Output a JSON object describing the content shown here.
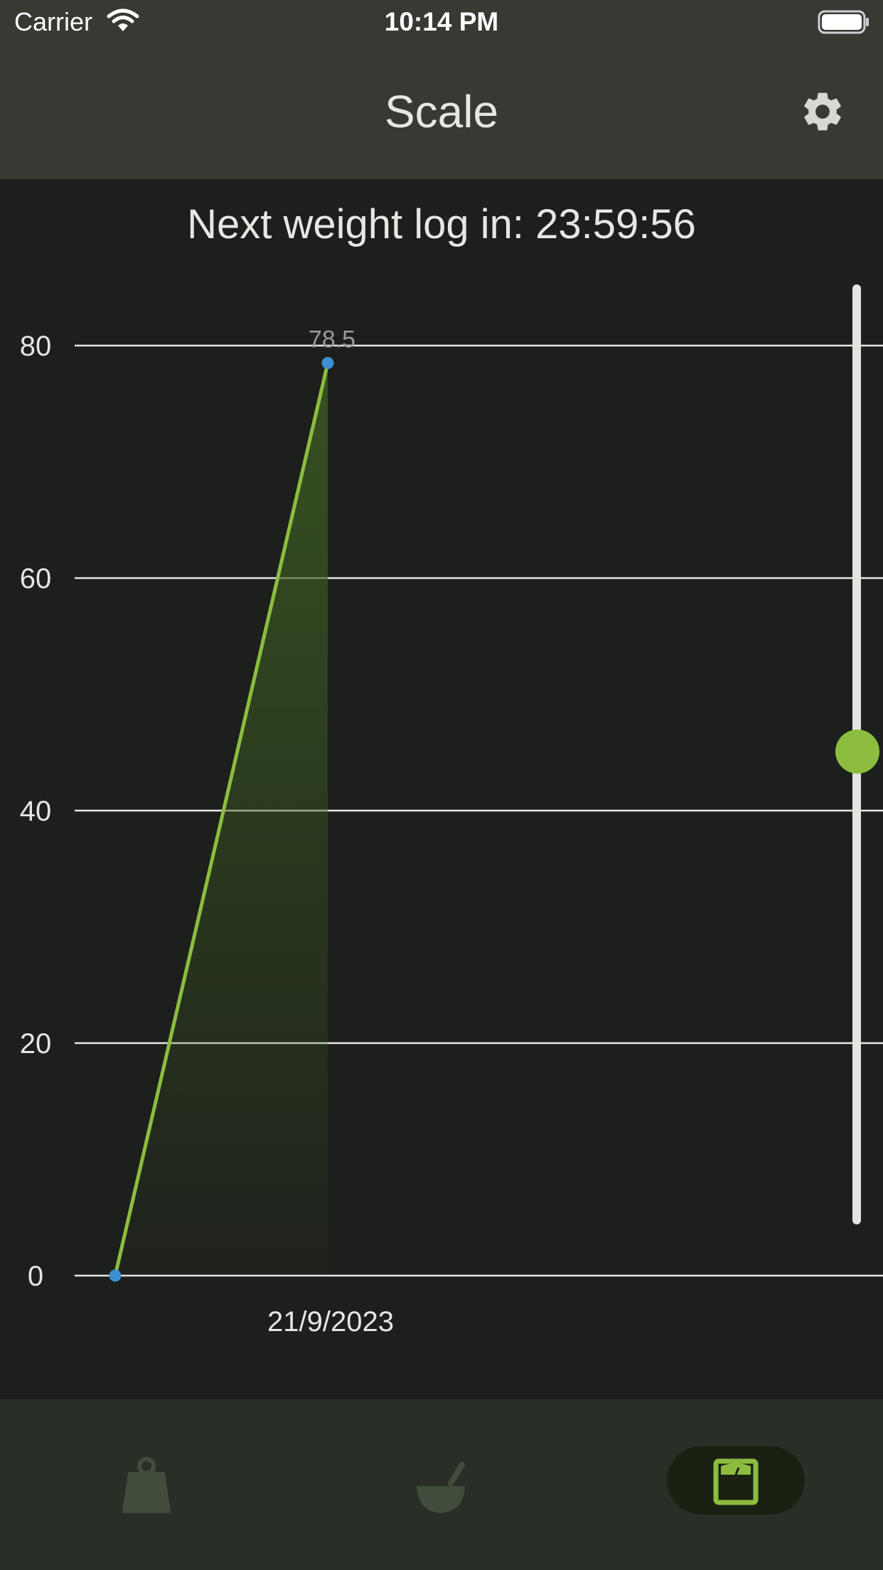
{
  "status_bar": {
    "carrier": "Carrier",
    "time": "10:14 PM"
  },
  "header": {
    "title": "Scale"
  },
  "countdown": {
    "text": "Next weight log in: 23:59:56"
  },
  "chart_data": {
    "type": "area",
    "points": [
      {
        "x": "",
        "y": 0
      },
      {
        "x": "21/9/2023",
        "y": 78.5,
        "label": "78.5"
      }
    ],
    "x_tick_labels": [
      "21/9/2023"
    ],
    "y_ticks": [
      0,
      20,
      40,
      60,
      80
    ],
    "ylim": [
      0,
      80
    ],
    "grid": true,
    "line_color": "#8cbd3f",
    "point_color": "#3d8fd1",
    "fill_color": "#3c5a22"
  },
  "zoom_slider": {
    "value_fraction": 0.5
  },
  "tab_bar": {
    "tabs": [
      {
        "icon": "weight-icon",
        "selected": false
      },
      {
        "icon": "mortar-bowl-icon",
        "selected": false
      },
      {
        "icon": "scale-icon",
        "selected": true
      }
    ]
  },
  "colors": {
    "accent": "#8cbd3f",
    "header_bg": "#363a33",
    "body_bg": "#1d1f1c",
    "tab_bar_bg": "#292e27"
  }
}
